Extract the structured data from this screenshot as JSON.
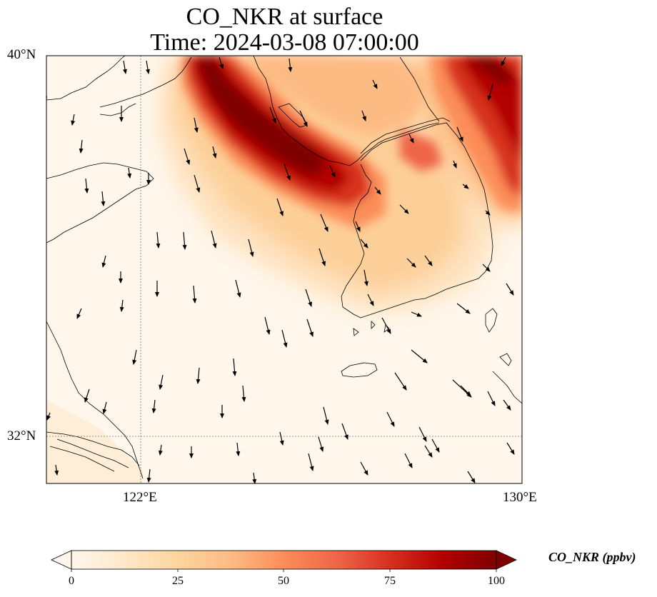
{
  "title": {
    "line1": "CO_NKR at surface",
    "line2": "Time: 2024-03-08 07:00:00"
  },
  "axes": {
    "lat_labels": [
      "40°N",
      "32°N"
    ],
    "lon_labels": [
      "122°E",
      "130°E"
    ],
    "lat_range": [
      31.2,
      40.0
    ],
    "lon_range": [
      114.0,
      130.0
    ]
  },
  "colorbar": {
    "label": "CO_NKR (ppbv)",
    "ticks": [
      "0",
      "25",
      "50",
      "75",
      "100"
    ],
    "range": [
      0,
      100
    ],
    "extend": "both",
    "colormap": "OrRd",
    "colors": [
      "#fff7ec",
      "#fee8c8",
      "#fdd49e",
      "#fdbb84",
      "#fc8d59",
      "#ef6548",
      "#d7301f",
      "#b30000",
      "#7f0000"
    ]
  },
  "field": {
    "description_free": true,
    "plume_main_max": 100,
    "plume_east_max": 90
  }
}
